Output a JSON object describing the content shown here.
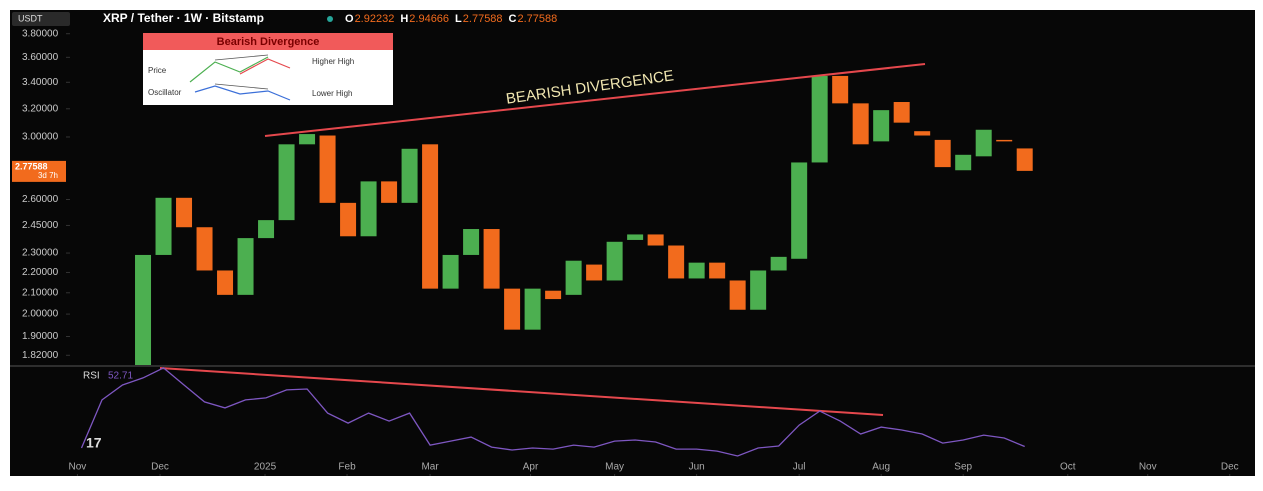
{
  "header": {
    "symbol_box": "USDT",
    "title": "XRP / Tether · 1W · Bitstamp",
    "ohlc": [
      {
        "label": "O",
        "value": 2.92232
      },
      {
        "label": "H",
        "value": 2.94666
      },
      {
        "label": "L",
        "value": 2.77588
      },
      {
        "label": "C",
        "value": 2.77588
      }
    ]
  },
  "chart_data": [
    {
      "type": "candlestick",
      "log_scale": true,
      "up_color": "#4caf50",
      "down_color": "#f26b1d",
      "annotation": "BEARISH DIVERGENCE",
      "countdown": "3d 7h",
      "inset": {
        "title": "Bearish Divergence",
        "price": "Price",
        "higher_high": "Higher High",
        "oscillator": "Oscillator",
        "lower_high": "Lower High"
      },
      "x": [
        0,
        1,
        2,
        3,
        4,
        5,
        6,
        7,
        8,
        9,
        10,
        11,
        12,
        13,
        14,
        15,
        16,
        17,
        18,
        19,
        20,
        21,
        22,
        23,
        24,
        25,
        26,
        27,
        28,
        29,
        30,
        31,
        32,
        33,
        34,
        35,
        36,
        37,
        38,
        39,
        40,
        41,
        42,
        43
      ],
      "open": [
        1.77,
        2.29,
        2.61,
        2.44,
        2.21,
        2.09,
        2.38,
        2.48,
        2.95,
        3.01,
        2.58,
        2.39,
        2.71,
        2.58,
        2.95,
        2.12,
        2.29,
        2.43,
        2.12,
        1.93,
        2.11,
        2.09,
        2.24,
        2.16,
        2.37,
        2.4,
        2.34,
        2.17,
        2.25,
        2.16,
        2.02,
        2.21,
        2.27,
        2.83,
        3.45,
        3.24,
        2.97,
        3.25,
        3.04,
        2.98,
        2.78,
        2.87,
        2.98,
        2.92232
      ],
      "close": [
        2.29,
        2.61,
        2.44,
        2.21,
        2.09,
        2.38,
        2.48,
        2.95,
        3.02,
        2.58,
        2.39,
        2.71,
        2.58,
        2.92,
        2.12,
        2.29,
        2.43,
        2.12,
        1.93,
        2.12,
        2.07,
        2.26,
        2.16,
        2.36,
        2.4,
        2.34,
        2.17,
        2.25,
        2.17,
        2.02,
        2.21,
        2.28,
        2.83,
        3.45,
        3.24,
        2.95,
        3.19,
        3.1,
        3.01,
        2.8,
        2.88,
        3.05,
        2.97,
        2.77588
      ],
      "xlim": [
        -6.39,
        53.5
      ],
      "ylim": [
        1.78,
        3.85
      ],
      "xticks": [
        {
          "value": -3.2,
          "label": "Nov"
        },
        {
          "value": 0.83,
          "label": "Dec"
        },
        {
          "value": 5.95,
          "label": "2025"
        },
        {
          "value": 9.95,
          "label": "Feb"
        },
        {
          "value": 14.0,
          "label": "Mar"
        },
        {
          "value": 18.9,
          "label": "Apr"
        },
        {
          "value": 23.0,
          "label": "May"
        },
        {
          "value": 27.0,
          "label": "Jun"
        },
        {
          "value": 32.0,
          "label": "Jul"
        },
        {
          "value": 36.0,
          "label": "Aug"
        },
        {
          "value": 40.0,
          "label": "Sep"
        },
        {
          "value": 45.1,
          "label": "Oct"
        },
        {
          "value": 49.0,
          "label": "Nov"
        },
        {
          "value": 53.0,
          "label": "Dec"
        }
      ],
      "yticks": [
        {
          "value": 3.8,
          "label": "3.80000"
        },
        {
          "value": 3.6,
          "label": "3.60000"
        },
        {
          "value": 3.4,
          "label": "3.40000"
        },
        {
          "value": 3.2,
          "label": "3.20000"
        },
        {
          "value": 3.0,
          "label": "3.00000"
        },
        {
          "value": 2.6,
          "label": "2.60000"
        },
        {
          "value": 2.45,
          "label": "2.45000"
        },
        {
          "value": 2.3,
          "label": "2.30000"
        },
        {
          "value": 2.2,
          "label": "2.20000"
        },
        {
          "value": 2.1,
          "label": "2.10000"
        },
        {
          "value": 2.0,
          "label": "2.00000"
        },
        {
          "value": 1.9,
          "label": "1.90000"
        },
        {
          "value": 1.82,
          "label": "1.82000"
        }
      ]
    },
    {
      "type": "line",
      "xlim": [
        -6.39,
        53.5
      ],
      "ylim": [
        48,
        80.5
      ],
      "x": [
        -3,
        -2,
        -1,
        0,
        1,
        2,
        3,
        4,
        5,
        6,
        7,
        8,
        9,
        10,
        11,
        12,
        13,
        14,
        15,
        16,
        17,
        18,
        19,
        20,
        21,
        22,
        23,
        24,
        25,
        26,
        27,
        28,
        29,
        30,
        31,
        32,
        33,
        34,
        35,
        36,
        37,
        38,
        39,
        40,
        41,
        42,
        43
      ],
      "series": [
        {
          "name": "RSI",
          "color": "#7e57c2",
          "values": [
            52.2,
            69.0,
            74.2,
            76.7,
            80.2,
            74.2,
            68.3,
            66.2,
            69.0,
            69.7,
            72.5,
            72.8,
            64.4,
            60.9,
            64.4,
            61.6,
            64.4,
            53.2,
            54.6,
            56.0,
            52.5,
            51.5,
            52.2,
            51.8,
            53.2,
            52.5,
            54.6,
            55.0,
            54.3,
            51.8,
            51.8,
            51.1,
            49.4,
            52.2,
            52.9,
            60.2,
            65.1,
            61.6,
            57.1,
            59.5,
            58.5,
            57.1,
            53.9,
            55.0,
            56.7,
            55.7,
            52.71
          ]
        }
      ]
    }
  ]
}
